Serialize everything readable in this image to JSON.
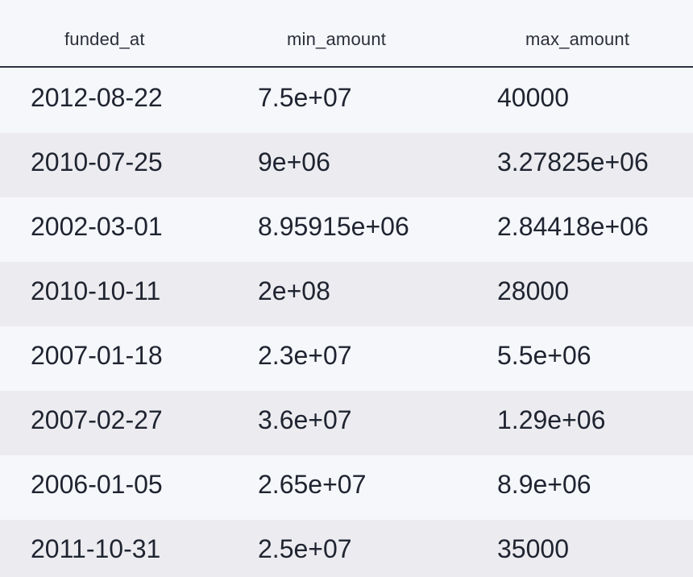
{
  "table": {
    "columns": [
      "funded_at",
      "min_amount",
      "max_amount"
    ],
    "rows": [
      [
        "2012-08-22",
        "7.5e+07",
        "40000"
      ],
      [
        "2010-07-25",
        "9e+06",
        "3.27825e+06"
      ],
      [
        "2002-03-01",
        "8.95915e+06",
        "2.84418e+06"
      ],
      [
        "2010-10-11",
        "2e+08",
        "28000"
      ],
      [
        "2007-01-18",
        "2.3e+07",
        "5.5e+06"
      ],
      [
        "2007-02-27",
        "3.6e+07",
        "1.29e+06"
      ],
      [
        "2006-01-05",
        "2.65e+07",
        "8.9e+06"
      ],
      [
        "2011-10-31",
        "2.5e+07",
        "35000"
      ]
    ]
  }
}
